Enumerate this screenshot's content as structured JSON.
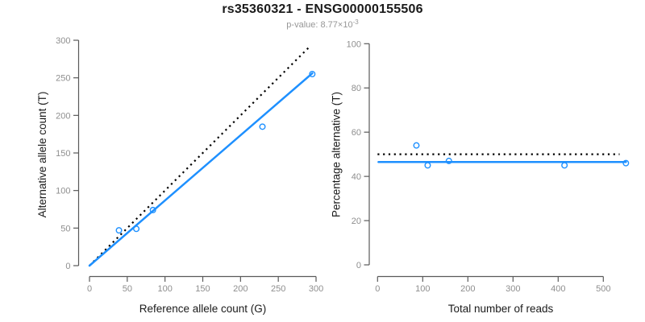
{
  "header": {
    "title": "rs35360321 - ENSG00000155506",
    "subtitle_prefix": "p-value: 8.77×10",
    "subtitle_exponent": "-3"
  },
  "colors": {
    "accent_blue": "#1E90FF",
    "dotted_black": "#000000",
    "axis_line": "#595959",
    "tick_label": "#8e8e8e",
    "axis_title": "#1a1a1a",
    "title": "#1a1a1a",
    "subtitle": "#969696",
    "background": "#ffffff"
  },
  "chart_data": [
    {
      "type": "scatter",
      "name": "allele-counts",
      "title": "",
      "xlabel": "Reference allele count (G)",
      "ylabel": "Alternative allele count (T)",
      "xlim": [
        0,
        300
      ],
      "ylim": [
        0,
        300
      ],
      "xticks": [
        0,
        50,
        100,
        150,
        200,
        250,
        300
      ],
      "yticks": [
        0,
        50,
        100,
        150,
        200,
        250,
        300
      ],
      "grid": false,
      "legend": "none",
      "points": [
        [
          39,
          47
        ],
        [
          62,
          49
        ],
        [
          84,
          74
        ],
        [
          229,
          185
        ],
        [
          295,
          255
        ]
      ],
      "lines": [
        {
          "name": "identity-line",
          "style": "dotted",
          "color": "#000000",
          "from": [
            0,
            0
          ],
          "to": [
            293,
            293
          ]
        },
        {
          "name": "regression-line",
          "style": "solid",
          "color": "#1E90FF",
          "from": [
            0,
            0
          ],
          "to": [
            295,
            256
          ]
        }
      ]
    },
    {
      "type": "scatter",
      "name": "percentage-vs-reads",
      "title": "",
      "xlabel": "Total number of reads",
      "ylabel": "Percentage alternative (T)",
      "xlim": [
        0,
        550
      ],
      "ylim": [
        0,
        100
      ],
      "xticks": [
        0,
        100,
        200,
        300,
        400,
        500
      ],
      "yticks": [
        0,
        20,
        40,
        60,
        80,
        100
      ],
      "grid": false,
      "legend": "none",
      "points": [
        [
          86,
          54
        ],
        [
          111,
          45
        ],
        [
          158,
          47
        ],
        [
          414,
          45
        ],
        [
          550,
          46
        ]
      ],
      "lines": [
        {
          "name": "expected-50-percent-line",
          "style": "dotted",
          "color": "#000000",
          "from": [
            0,
            50
          ],
          "to": [
            536,
            50
          ]
        },
        {
          "name": "mean-percentage-line",
          "style": "solid",
          "color": "#1E90FF",
          "from": [
            2,
            46.5
          ],
          "to": [
            550,
            46.5
          ]
        }
      ]
    }
  ]
}
